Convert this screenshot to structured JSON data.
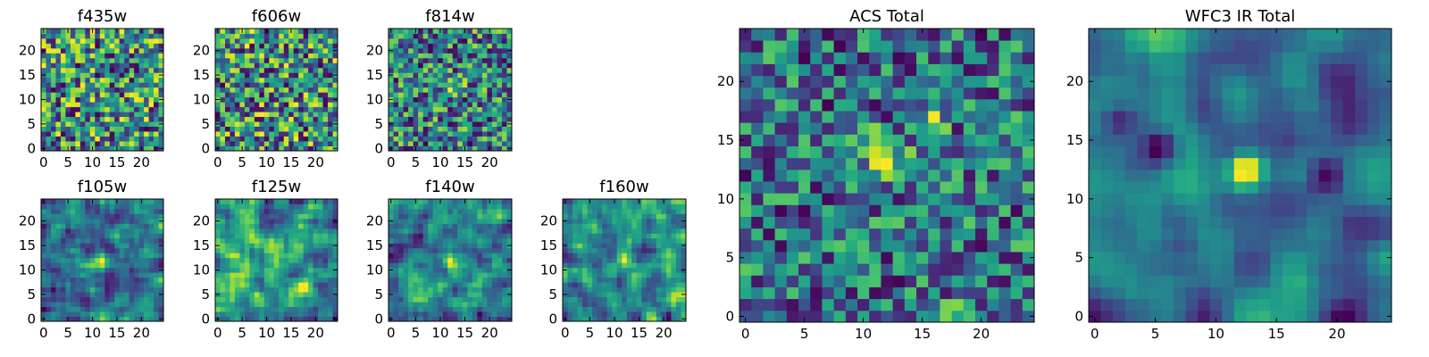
{
  "chart_data": [
    {
      "type": "heatmap",
      "title": "f435w",
      "grid": [
        25,
        25
      ],
      "colormap": "viridis",
      "xlim": [
        0,
        24
      ],
      "ylim": [
        0,
        24
      ],
      "xticks": [
        0,
        5,
        10,
        15,
        20
      ],
      "yticks": [
        0,
        5,
        10,
        15,
        20
      ],
      "seed": 11,
      "smooth": 0,
      "peaks": []
    },
    {
      "type": "heatmap",
      "title": "f606w",
      "grid": [
        25,
        25
      ],
      "colormap": "viridis",
      "xlim": [
        0,
        24
      ],
      "ylim": [
        0,
        24
      ],
      "xticks": [
        0,
        5,
        10,
        15,
        20
      ],
      "yticks": [
        0,
        5,
        10,
        15,
        20
      ],
      "seed": 23,
      "smooth": 0,
      "peaks": []
    },
    {
      "type": "heatmap",
      "title": "f814w",
      "grid": [
        25,
        25
      ],
      "colormap": "viridis",
      "xlim": [
        0,
        24
      ],
      "ylim": [
        0,
        24
      ],
      "xticks": [
        0,
        5,
        10,
        15,
        20
      ],
      "yticks": [
        0,
        5,
        10,
        15,
        20
      ],
      "seed": 37,
      "smooth": 0,
      "peaks": [
        [
          13,
          13,
          0.5
        ]
      ]
    },
    {
      "type": "heatmap",
      "title": "f105w",
      "grid": [
        25,
        25
      ],
      "colormap": "viridis",
      "xlim": [
        0,
        24
      ],
      "ylim": [
        0,
        24
      ],
      "xticks": [
        0,
        5,
        10,
        15,
        20
      ],
      "yticks": [
        0,
        5,
        10,
        15,
        20
      ],
      "seed": 41,
      "smooth": 1,
      "peaks": [
        [
          12,
          12,
          0.5
        ],
        [
          10,
          11,
          0.35
        ]
      ]
    },
    {
      "type": "heatmap",
      "title": "f125w",
      "grid": [
        25,
        25
      ],
      "colormap": "viridis",
      "xlim": [
        0,
        24
      ],
      "ylim": [
        0,
        24
      ],
      "xticks": [
        0,
        5,
        10,
        15,
        20
      ],
      "yticks": [
        0,
        5,
        10,
        15,
        20
      ],
      "seed": 53,
      "smooth": 1,
      "peaks": [
        [
          12,
          12,
          0.3
        ]
      ]
    },
    {
      "type": "heatmap",
      "title": "f140w",
      "grid": [
        25,
        25
      ],
      "colormap": "viridis",
      "xlim": [
        0,
        24
      ],
      "ylim": [
        0,
        24
      ],
      "xticks": [
        0,
        5,
        10,
        15,
        20
      ],
      "yticks": [
        0,
        5,
        10,
        15,
        20
      ],
      "seed": 67,
      "smooth": 1,
      "peaks": [
        [
          12,
          12,
          0.35
        ],
        [
          11,
          7,
          0.3
        ]
      ]
    },
    {
      "type": "heatmap",
      "title": "f160w",
      "grid": [
        25,
        25
      ],
      "colormap": "viridis",
      "xlim": [
        0,
        24
      ],
      "ylim": [
        0,
        24
      ],
      "xticks": [
        0,
        5,
        10,
        15,
        20
      ],
      "yticks": [
        0,
        5,
        10,
        15,
        20
      ],
      "seed": 79,
      "smooth": 1,
      "peaks": [
        [
          12,
          12,
          0.5
        ],
        [
          22,
          4,
          0.3
        ]
      ]
    },
    {
      "type": "heatmap",
      "title": "ACS Total",
      "grid": [
        25,
        25
      ],
      "colormap": "viridis",
      "xlim": [
        0,
        24
      ],
      "ylim": [
        0,
        24
      ],
      "xticks": [
        0,
        5,
        10,
        15,
        20
      ],
      "yticks": [
        0,
        5,
        10,
        15,
        20
      ],
      "seed": 97,
      "smooth": 0,
      "peaks": [
        [
          11,
          14,
          0.6
        ],
        [
          13,
          13,
          0.45
        ],
        [
          16,
          17,
          0.4
        ],
        [
          18,
          0,
          0.45
        ],
        [
          2,
          0,
          0.4
        ]
      ]
    },
    {
      "type": "heatmap",
      "title": "WFC3 IR Total",
      "grid": [
        25,
        25
      ],
      "colormap": "viridis",
      "xlim": [
        0,
        24
      ],
      "ylim": [
        0,
        24
      ],
      "xticks": [
        0,
        5,
        10,
        15,
        20
      ],
      "yticks": [
        0,
        5,
        10,
        15,
        20
      ],
      "seed": 131,
      "smooth": 2,
      "peaks": [
        [
          12.5,
          12.5,
          1.0
        ],
        [
          20,
          2,
          0.35
        ],
        [
          24,
          5,
          0.3
        ]
      ],
      "dips": [
        [
          5.5,
          14.5,
          0.6
        ],
        [
          2,
          16.5,
          0.45
        ],
        [
          19,
          12,
          0.55
        ]
      ]
    }
  ]
}
